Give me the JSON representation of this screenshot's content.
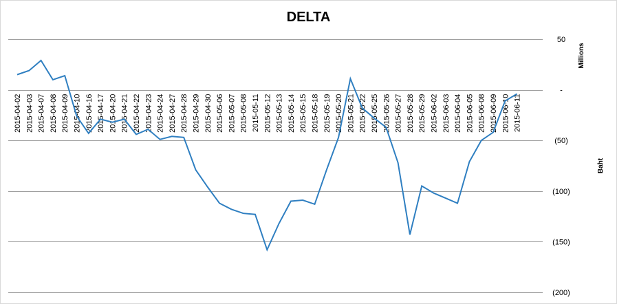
{
  "chart_data": {
    "type": "line",
    "title": "DELTA",
    "ylabel": "Baht",
    "y_unit": "Millions",
    "ylim": [
      -200,
      50
    ],
    "y_ticks": [
      50,
      0,
      -50,
      -100,
      -150,
      -200
    ],
    "y_tick_labels": [
      "50",
      "-",
      "(50)",
      "(100)",
      "(150)",
      "(200)"
    ],
    "grid": true,
    "legend": "none",
    "line_color": "#2f7fc1",
    "grid_color": "#9f9f9f",
    "x": [
      "2015-04-02",
      "2015-04-03",
      "2015-04-07",
      "2015-04-08",
      "2015-04-09",
      "2015-04-10",
      "2015-04-16",
      "2015-04-17",
      "2015-04-20",
      "2015-04-21",
      "2015-04-22",
      "2015-04-23",
      "2015-04-24",
      "2015-04-27",
      "2015-04-28",
      "2015-04-29",
      "2015-04-30",
      "2015-05-06",
      "2015-05-07",
      "2015-05-08",
      "2015-05-11",
      "2015-05-12",
      "2015-05-13",
      "2015-05-14",
      "2015-05-15",
      "2015-05-18",
      "2015-05-19",
      "2015-05-20",
      "2015-05-21",
      "2015-05-22",
      "2015-05-25",
      "2015-05-26",
      "2015-05-27",
      "2015-05-28",
      "2015-05-29",
      "2015-06-02",
      "2015-06-03",
      "2015-06-04",
      "2015-06-05",
      "2015-06-08",
      "2015-06-09",
      "2015-06-10",
      "2015-06-11"
    ],
    "series": [
      {
        "values": [
          15,
          19,
          29,
          10,
          14,
          -26,
          -43,
          -29,
          -32,
          -29,
          -44,
          -39,
          -49,
          -46,
          -47,
          -79,
          -96,
          -112,
          -118,
          -122,
          -123,
          -158,
          -132,
          -110,
          -109,
          -113,
          -79,
          -47,
          11,
          -18,
          -28,
          -37,
          -72,
          -143,
          -95,
          -102,
          -107,
          -112,
          -71,
          -50,
          -42,
          -11,
          -4
        ]
      }
    ]
  }
}
